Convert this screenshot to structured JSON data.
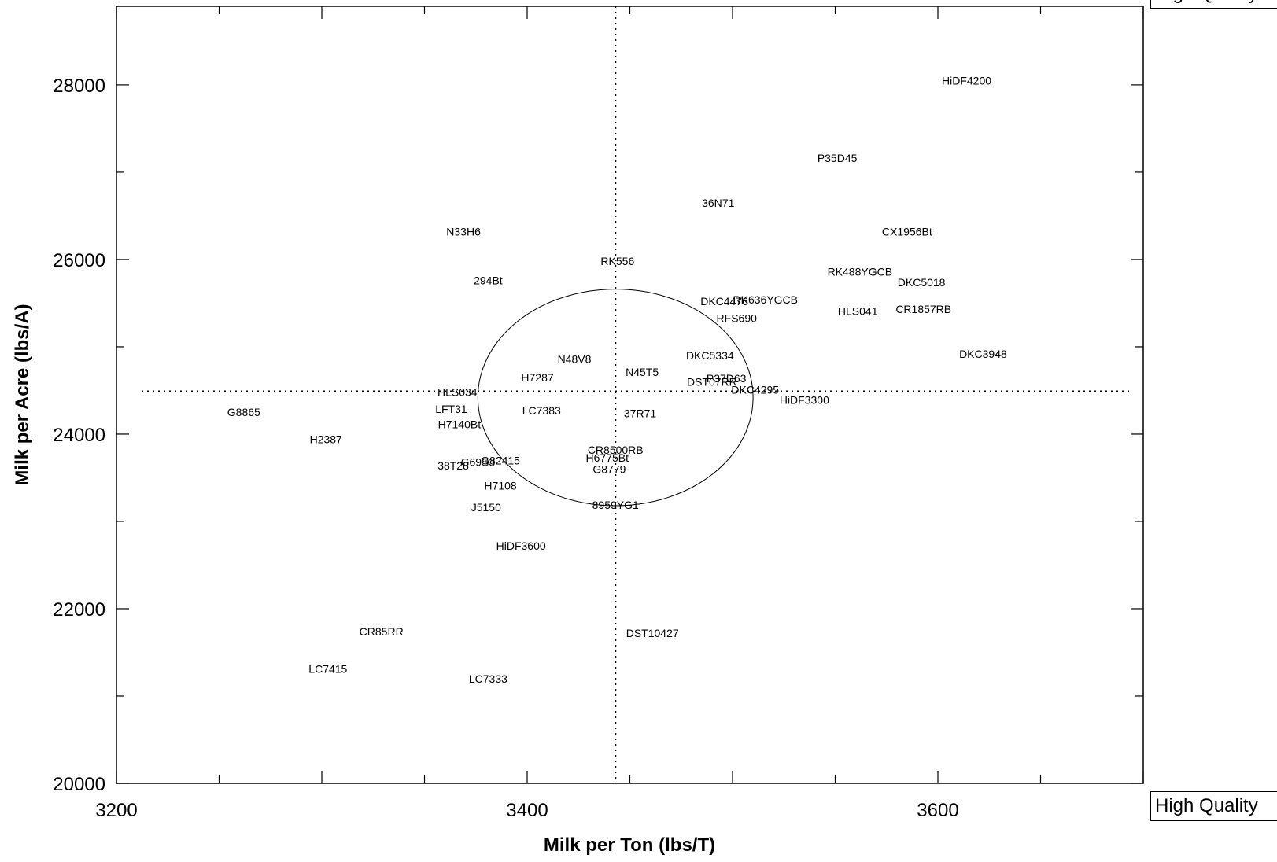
{
  "chart_data": {
    "type": "scatter",
    "title": "",
    "xlabel": "Milk per Ton (lbs/T)",
    "ylabel": "Milk per Acre (lbs/A)",
    "xlim": [
      3200,
      3700
    ],
    "ylim": [
      20000,
      28900
    ],
    "xticks": [
      3200,
      3400,
      3600
    ],
    "yticks": [
      20000,
      22000,
      24000,
      26000,
      28000
    ],
    "grid": false,
    "reference_lines": {
      "x_mean": 3443,
      "y_mean": 24490
    },
    "ellipse": {
      "cx": 3443,
      "cy": 24420,
      "rx": 67,
      "ry": 1240
    },
    "points": [
      {
        "label": "HiDF4200",
        "x": 3614,
        "y": 28050
      },
      {
        "label": "P35D45",
        "x": 3551,
        "y": 27160
      },
      {
        "label": "36N71",
        "x": 3493,
        "y": 26650
      },
      {
        "label": "N33H6",
        "x": 3369,
        "y": 26320
      },
      {
        "label": "CX1956Bt",
        "x": 3585,
        "y": 26320
      },
      {
        "label": "RK556",
        "x": 3444,
        "y": 25980
      },
      {
        "label": "RK488YGCB",
        "x": 3562,
        "y": 25860
      },
      {
        "label": "DKC5018",
        "x": 3592,
        "y": 25740
      },
      {
        "label": "294Bt",
        "x": 3381,
        "y": 25760
      },
      {
        "label": "RK636YGCB",
        "x": 3516,
        "y": 25540
      },
      {
        "label": "DKC4476",
        "x": 3496,
        "y": 25520
      },
      {
        "label": "CR1857RB",
        "x": 3593,
        "y": 25430
      },
      {
        "label": "HLS041",
        "x": 3561,
        "y": 25410
      },
      {
        "label": "RFS690",
        "x": 3502,
        "y": 25330
      },
      {
        "label": "DKC3948",
        "x": 3622,
        "y": 24920
      },
      {
        "label": "DKC5334",
        "x": 3489,
        "y": 24900
      },
      {
        "label": "N48V8",
        "x": 3423,
        "y": 24860
      },
      {
        "label": "N45T5",
        "x": 3456,
        "y": 24710
      },
      {
        "label": "H7287",
        "x": 3405,
        "y": 24650
      },
      {
        "label": "P37D63",
        "x": 3497,
        "y": 24640
      },
      {
        "label": "DST07RR",
        "x": 3490,
        "y": 24600
      },
      {
        "label": "DKC4295",
        "x": 3511,
        "y": 24510
      },
      {
        "label": "HLS034",
        "x": 3366,
        "y": 24480
      },
      {
        "label": "HiDF3300",
        "x": 3535,
        "y": 24390
      },
      {
        "label": "LFT31",
        "x": 3363,
        "y": 24290
      },
      {
        "label": "G8865",
        "x": 3262,
        "y": 24250
      },
      {
        "label": "LC7383",
        "x": 3407,
        "y": 24270
      },
      {
        "label": "37R71",
        "x": 3455,
        "y": 24240
      },
      {
        "label": "H7140Bt",
        "x": 3367,
        "y": 24110
      },
      {
        "label": "H2387",
        "x": 3302,
        "y": 23940
      },
      {
        "label": "CR8500RB",
        "x": 3443,
        "y": 23820
      },
      {
        "label": "H6775Bt",
        "x": 3439,
        "y": 23730
      },
      {
        "label": "G69S3",
        "x": 3376,
        "y": 23680
      },
      {
        "label": "G82415",
        "x": 3387,
        "y": 23700
      },
      {
        "label": "38T28",
        "x": 3364,
        "y": 23640
      },
      {
        "label": "G8779",
        "x": 3440,
        "y": 23600
      },
      {
        "label": "H7108",
        "x": 3387,
        "y": 23410
      },
      {
        "label": "8959YG1",
        "x": 3443,
        "y": 23190
      },
      {
        "label": "J5150",
        "x": 3380,
        "y": 23160
      },
      {
        "label": "HiDF3600",
        "x": 3397,
        "y": 22720
      },
      {
        "label": "CR85RR",
        "x": 3329,
        "y": 21740
      },
      {
        "label": "DST10427",
        "x": 3461,
        "y": 21720
      },
      {
        "label": "LC7415",
        "x": 3303,
        "y": 21310
      },
      {
        "label": "LC7333",
        "x": 3381,
        "y": 21200
      }
    ]
  },
  "side_boxes": {
    "top": "High Quality",
    "bottom": "High Quality"
  }
}
